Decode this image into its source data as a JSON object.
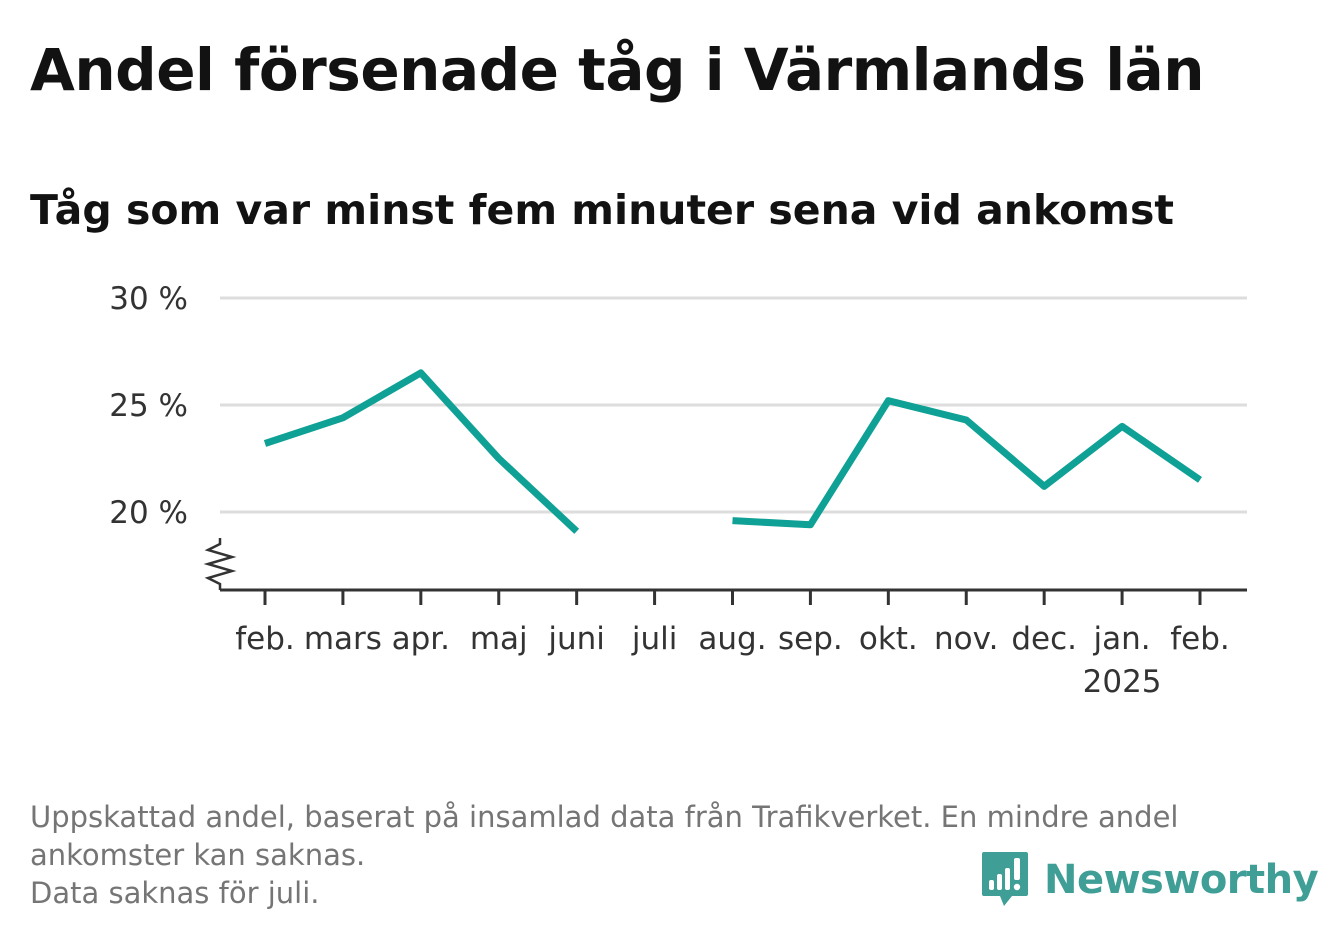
{
  "title": "Andel försenade tåg i Värmlands län",
  "subtitle": "Tåg som var minst fem minuter sena vid ankomst",
  "footnote": {
    "line1": "Uppskattad andel, baserat på insamlad data från Trafikverket. En mindre andel",
    "line2": "ankomster kan saknas.",
    "line3": "Data saknas för juli."
  },
  "logo": {
    "name": "Newsworthy",
    "icon": "bar-chart-speech-icon",
    "color": "#3f9e96"
  },
  "chart_data": {
    "type": "line",
    "title": "Andel försenade tåg i Värmlands län",
    "subtitle": "Tåg som var minst fem minuter sena vid ankomst",
    "categories": [
      "feb.",
      "mars",
      "apr.",
      "maj",
      "juni",
      "juli",
      "aug.",
      "sep.",
      "okt.",
      "nov.",
      "dec.",
      "jan.",
      "feb."
    ],
    "year_labels": [
      "",
      "",
      "",
      "",
      "",
      "",
      "",
      "",
      "",
      "",
      "",
      "2025",
      ""
    ],
    "series": [
      {
        "values": [
          23.2,
          24.4,
          26.5,
          22.5,
          19.1,
          null,
          19.6,
          19.4,
          25.2,
          24.3,
          21.2,
          24.0,
          21.5
        ]
      }
    ],
    "ylim": [
      16.4,
      30
    ],
    "yticks": [
      20,
      25,
      30
    ],
    "ytick_labels": [
      "20 %",
      "25 %",
      "30 %"
    ],
    "axis_break": true,
    "grid": true,
    "line_color": "#0fa195",
    "grid_color": "#dddddd",
    "axis_color": "#333333"
  }
}
